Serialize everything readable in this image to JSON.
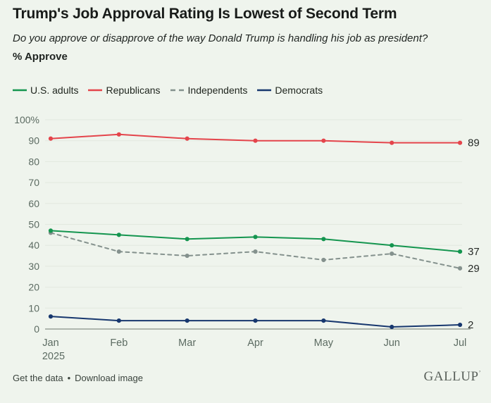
{
  "chart_data": {
    "type": "line",
    "title": "Trump's Job Approval Rating Is Lowest of Second Term",
    "subtitle": "Do you approve or disapprove of the way Donald Trump is handling his job as president?",
    "ylabel": "% Approve",
    "categories": [
      "Jan",
      "Feb",
      "Mar",
      "Apr",
      "May",
      "Jun",
      "Jul"
    ],
    "x_first_sublabel": "2025",
    "ylim": [
      0,
      100
    ],
    "ytick_step": 10,
    "ytick_top_label": "100%",
    "grid": true,
    "legend_position": "top",
    "series": [
      {
        "name": "U.S. adults",
        "color": "#14954f",
        "dash": false,
        "values": [
          47,
          45,
          43,
          44,
          43,
          40,
          37
        ],
        "end_label": "37"
      },
      {
        "name": "Republicans",
        "color": "#e4444b",
        "dash": false,
        "values": [
          91,
          93,
          91,
          90,
          90,
          89,
          89
        ],
        "end_label": "89"
      },
      {
        "name": "Independents",
        "color": "#84918d",
        "dash": true,
        "values": [
          46,
          37,
          35,
          37,
          33,
          36,
          29
        ],
        "end_label": "29"
      },
      {
        "name": "Democrats",
        "color": "#17376e",
        "dash": false,
        "values": [
          6,
          4,
          4,
          4,
          4,
          1,
          2
        ],
        "end_label": "2"
      }
    ]
  },
  "footer": {
    "links": [
      "Get the data",
      "Download image"
    ],
    "separator": "•",
    "logo": "GALLUP",
    "logo_mark": "ʼ"
  },
  "colors": {
    "background": "#eff4ed",
    "grid": "#e2e8df",
    "axis": "#99a29a",
    "tick_text": "#5c6b62",
    "end_label_text": "#272b28"
  }
}
